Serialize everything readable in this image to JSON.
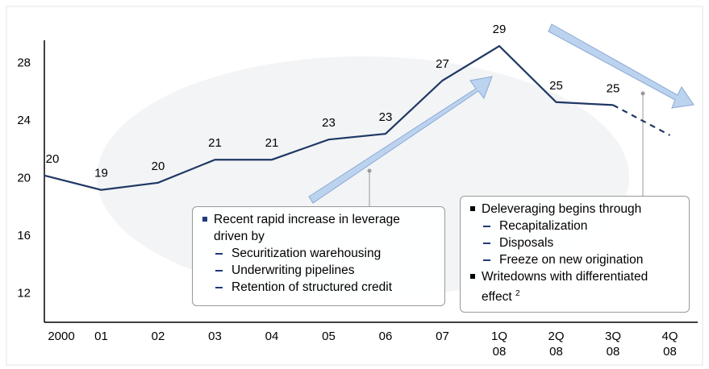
{
  "chart_data": {
    "type": "line",
    "categories": [
      "2000",
      "01",
      "02",
      "03",
      "04",
      "05",
      "06",
      "07",
      "1Q 08",
      "2Q 08",
      "3Q 08",
      "4Q 08"
    ],
    "values": [
      20.2,
      19.2,
      19.7,
      21.3,
      21.3,
      22.7,
      23.1,
      26.8,
      29.2,
      25.3,
      25.1,
      23.0
    ],
    "value_labels": [
      "20",
      "19",
      "20",
      "21",
      "21",
      "23",
      "23",
      "27",
      "29",
      "25",
      "25",
      null
    ],
    "dashed_from_index": 10,
    "color": "#1f3864",
    "ylim": [
      10,
      29.6
    ],
    "yticks": [
      12,
      16,
      20,
      24,
      28
    ],
    "annotations": [
      {
        "bullet": "Recent rapid increase in leverage driven by",
        "items": [
          "Securitization warehousing",
          "Underwriting pipelines",
          "Retention of structured credit"
        ]
      },
      {
        "bullets": [
          {
            "text": "Deleveraging begins through",
            "items": [
              "Recapitalization",
              "Disposals",
              "Freeze on new origination"
            ]
          },
          {
            "text": "Writedowns with differentiated effect",
            "sup": "2",
            "items": []
          }
        ]
      }
    ]
  }
}
